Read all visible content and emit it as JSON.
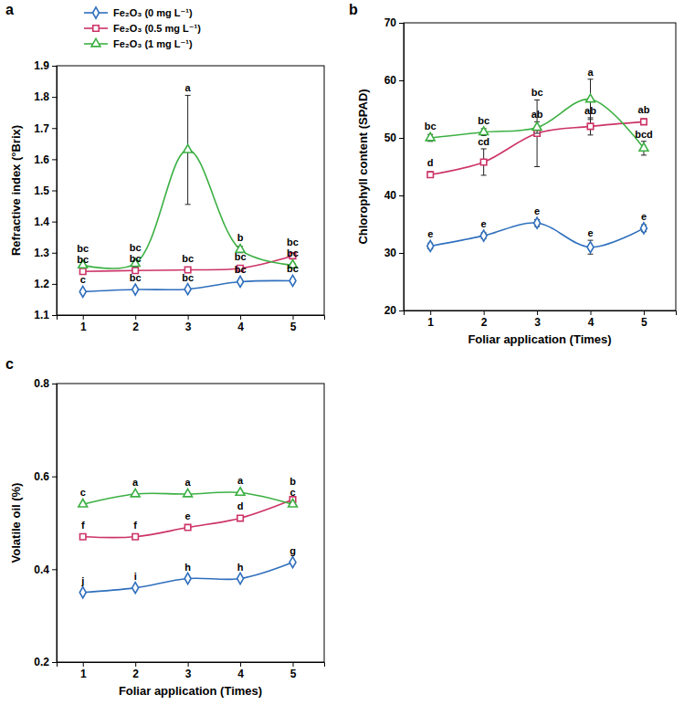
{
  "chart_data": [
    {
      "type": "line",
      "title": "a",
      "y_label": "Refractive index (°Brix)",
      "x": [
        1,
        2,
        3,
        4,
        5
      ],
      "xlim": [
        0.5,
        5.6
      ],
      "xticks": [
        1,
        2,
        3,
        4,
        5
      ],
      "ylim": [
        1.1,
        1.9
      ],
      "yticks": [
        1.1,
        1.2,
        1.3,
        1.4,
        1.5,
        1.6,
        1.7,
        1.8,
        1.9
      ],
      "grid": false,
      "legend": "top",
      "series": [
        {
          "name": "Fe₂O₃ (0 mg L⁻¹)",
          "color": "#2f6fbd",
          "marker": "diamond",
          "line_style": "smooth",
          "values": [
            1.175,
            1.182,
            1.183,
            1.207,
            1.21
          ],
          "errors": [
            0.005,
            0.004,
            0.004,
            0.005,
            0.005
          ],
          "letters": [
            "c",
            "bc",
            "bc",
            "bc",
            "bc"
          ]
        },
        {
          "name": "Fe₂O₃ (0.5 mg L⁻¹)",
          "color": "#cc3366",
          "marker": "square",
          "line_style": "smooth",
          "values": [
            1.24,
            1.243,
            1.245,
            1.25,
            1.29
          ],
          "errors": [
            0.005,
            0.005,
            0.004,
            0.006,
            0.006
          ],
          "letters": [
            "bc",
            "bc",
            "bc",
            "bc",
            "bc"
          ]
        },
        {
          "name": "Fe₂O₃ (1 mg L⁻¹)",
          "color": "#3cb043",
          "marker": "triangle",
          "line_style": "smooth",
          "values": [
            1.26,
            1.265,
            1.63,
            1.31,
            1.26
          ],
          "errors": [
            0.008,
            0.01,
            0.175,
            0.01,
            0.006
          ],
          "letters": [
            "bc",
            "bc",
            "a",
            "b",
            "bc"
          ]
        }
      ]
    },
    {
      "type": "line",
      "title": "b",
      "y_label": "Chlorophyll content (SPAD)",
      "x_label": "Foliar application (Times)",
      "x": [
        1,
        2,
        3,
        4,
        5
      ],
      "xlim": [
        0.5,
        5.6
      ],
      "xticks": [
        1,
        2,
        3,
        4,
        5
      ],
      "ylim": [
        20,
        70
      ],
      "yticks": [
        20,
        30,
        40,
        50,
        60,
        70
      ],
      "grid": false,
      "series": [
        {
          "name": "Fe₂O₃ (0 mg L⁻¹)",
          "color": "#2f6fbd",
          "marker": "diamond",
          "line_style": "smooth",
          "values": [
            31.2,
            33,
            35.2,
            31,
            34.3
          ],
          "errors": [
            0.5,
            0.5,
            0.6,
            1.2,
            0.6
          ],
          "letters": [
            "e",
            "e",
            "e",
            "e",
            "e"
          ]
        },
        {
          "name": "Fe₂O₃ (0.5 mg L⁻¹)",
          "color": "#cc3366",
          "marker": "square",
          "line_style": "smooth",
          "values": [
            43.6,
            45.8,
            50.8,
            52,
            52.8
          ],
          "errors": [
            0.5,
            2.3,
            5.8,
            1.5,
            0.5
          ],
          "letters": [
            "d",
            "cd",
            "bc",
            "ab",
            "ab"
          ]
        },
        {
          "name": "Fe₂O₃ (1 mg L⁻¹)",
          "color": "#3cb043",
          "marker": "triangle",
          "line_style": "smooth",
          "values": [
            50,
            51,
            51.8,
            56.7,
            48.2
          ],
          "errors": [
            0.6,
            0.6,
            1.0,
            3.5,
            1.2
          ],
          "letters": [
            "bc",
            "bc",
            "ab",
            "a",
            "bcd"
          ]
        }
      ]
    },
    {
      "type": "line",
      "title": "c",
      "y_label": "Volatile oil (%)",
      "x_label": "Foliar application (Times)",
      "x": [
        1,
        2,
        3,
        4,
        5
      ],
      "xlim": [
        0.5,
        5.6
      ],
      "xticks": [
        1,
        2,
        3,
        4,
        5
      ],
      "ylim": [
        0.2,
        0.8
      ],
      "yticks": [
        0.2,
        0.4,
        0.6,
        0.8
      ],
      "grid": false,
      "series": [
        {
          "name": "Fe₂O₃ (0 mg L⁻¹)",
          "color": "#2f6fbd",
          "marker": "diamond",
          "line_style": "smooth",
          "values": [
            0.35,
            0.36,
            0.38,
            0.38,
            0.415
          ],
          "letters": [
            "j",
            "i",
            "h",
            "h",
            "g"
          ]
        },
        {
          "name": "Fe₂O₃ (0.5 mg L⁻¹)",
          "color": "#cc3366",
          "marker": "square",
          "line_style": "smooth",
          "values": [
            0.47,
            0.47,
            0.49,
            0.51,
            0.55
          ],
          "letters": [
            "f",
            "f",
            "e",
            "d",
            "b"
          ]
        },
        {
          "name": "Fe₂O₃ (1 mg L⁻¹)",
          "color": "#3cb043",
          "marker": "triangle",
          "line_style": "smooth",
          "values": [
            0.54,
            0.562,
            0.562,
            0.565,
            0.54
          ],
          "letters": [
            "c",
            "a",
            "a",
            "a",
            "c"
          ]
        }
      ]
    }
  ]
}
